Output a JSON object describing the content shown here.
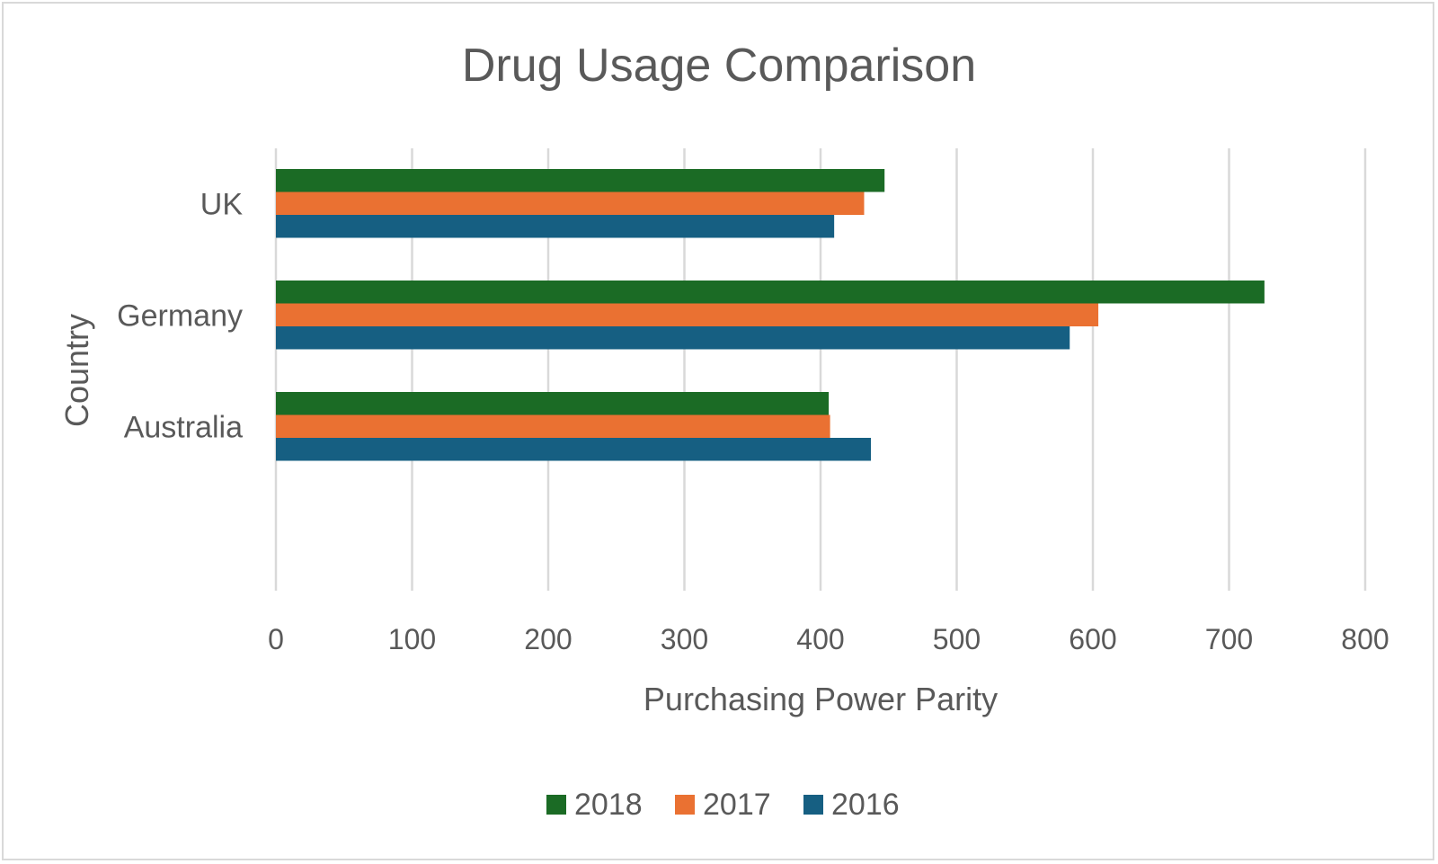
{
  "chart_data": {
    "type": "bar",
    "orientation": "horizontal",
    "title": "Drug Usage Comparison",
    "xlabel": "Purchasing Power Parity",
    "ylabel": "Country",
    "xlim": [
      0,
      800
    ],
    "xticks": [
      0,
      100,
      200,
      300,
      400,
      500,
      600,
      700,
      800
    ],
    "grid": true,
    "legend_position": "bottom",
    "categories": [
      "UK",
      "Germany",
      "Australia"
    ],
    "series": [
      {
        "name": "2018",
        "color": "#1b6b25",
        "values": [
          447,
          726,
          406
        ]
      },
      {
        "name": "2017",
        "color": "#ea7132",
        "values": [
          432,
          604,
          407
        ]
      },
      {
        "name": "2016",
        "color": "#165f82",
        "values": [
          410,
          583,
          437
        ]
      }
    ]
  }
}
